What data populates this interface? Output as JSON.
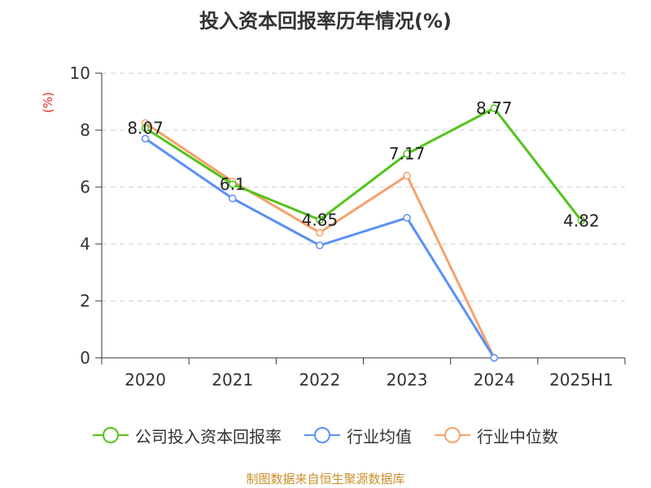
{
  "chart_data": {
    "type": "line",
    "title": "投入资本回报率历年情况(%)",
    "ylabel": "(%)",
    "categories": [
      "2020",
      "2021",
      "2022",
      "2023",
      "2024",
      "2025H1"
    ],
    "ylim": [
      0,
      10
    ],
    "yticks": [
      "0",
      "2",
      "4",
      "6",
      "8",
      "10"
    ],
    "grid": "horizontal-dashed",
    "legend_placement": "bottom",
    "series": [
      {
        "name": "公司投入资本回报率",
        "color": "#52c41a",
        "values": [
          8.07,
          6.1,
          4.85,
          7.17,
          8.77,
          4.82
        ],
        "labels": [
          "8.07",
          "6.1",
          "4.85",
          "7.17",
          "8.77",
          "4.82"
        ]
      },
      {
        "name": "行业均值",
        "color": "#5b8ff9",
        "values": [
          7.7,
          5.6,
          3.95,
          4.92,
          0,
          null
        ]
      },
      {
        "name": "行业中位数",
        "color": "#f6a16b",
        "values": [
          8.25,
          6.2,
          4.4,
          6.4,
          0,
          null
        ]
      }
    ],
    "source": "制图数据来自恒生聚源数据库"
  }
}
